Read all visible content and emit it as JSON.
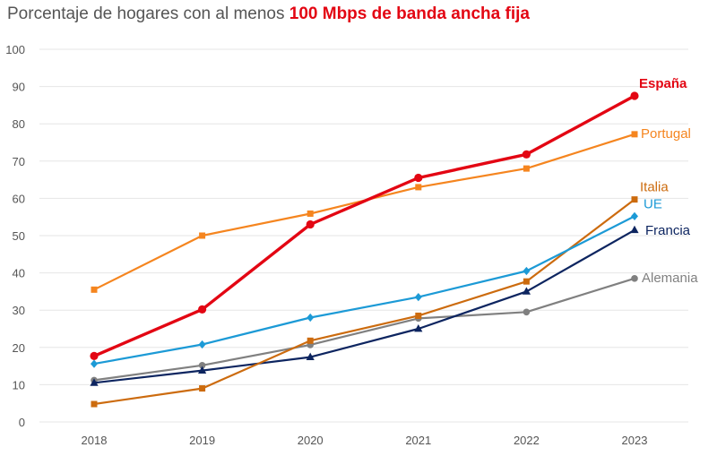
{
  "title_plain": "Porcentaje de hogares con al menos ",
  "title_highlight": "100 Mbps de banda ancha fija",
  "colors": {
    "highlight": "#e30613",
    "grid": "#e6e6e6",
    "text": "#555555"
  },
  "chart_data": {
    "type": "line",
    "title": "Porcentaje de hogares con al menos 100 Mbps de banda ancha fija",
    "x": [
      "2018",
      "2019",
      "2020",
      "2021",
      "2022",
      "2023"
    ],
    "ylim": [
      0,
      100
    ],
    "yticks": [
      0,
      10,
      20,
      30,
      40,
      50,
      60,
      70,
      80,
      90,
      100
    ],
    "grid": "horizontal",
    "legend": "direct labels at line ends",
    "series": [
      {
        "name": "Alemania",
        "color": "#808080",
        "marker": "circle",
        "values": [
          11.2,
          15.2,
          20.7,
          27.8,
          29.5,
          38.5
        ]
      },
      {
        "name": "Francia",
        "color": "#0d2560",
        "marker": "triangle",
        "values": [
          10.5,
          13.8,
          17.4,
          25.0,
          35.0,
          51.5
        ]
      },
      {
        "name": "Italia",
        "color": "#cc6b0e",
        "marker": "square",
        "values": [
          4.8,
          9.0,
          21.8,
          28.5,
          37.7,
          59.7
        ]
      },
      {
        "name": "UE",
        "color": "#1c9ad6",
        "marker": "diamond",
        "values": [
          15.6,
          20.8,
          28.0,
          33.5,
          40.5,
          55.2
        ]
      },
      {
        "name": "Portugal",
        "color": "#f5851f",
        "marker": "square",
        "values": [
          35.5,
          50.0,
          55.9,
          63.0,
          68.0,
          77.2
        ]
      },
      {
        "name": "España",
        "color": "#e30613",
        "marker": "circle",
        "bold": true,
        "values": [
          17.7,
          30.2,
          53.0,
          65.5,
          71.8,
          87.5
        ]
      }
    ]
  }
}
